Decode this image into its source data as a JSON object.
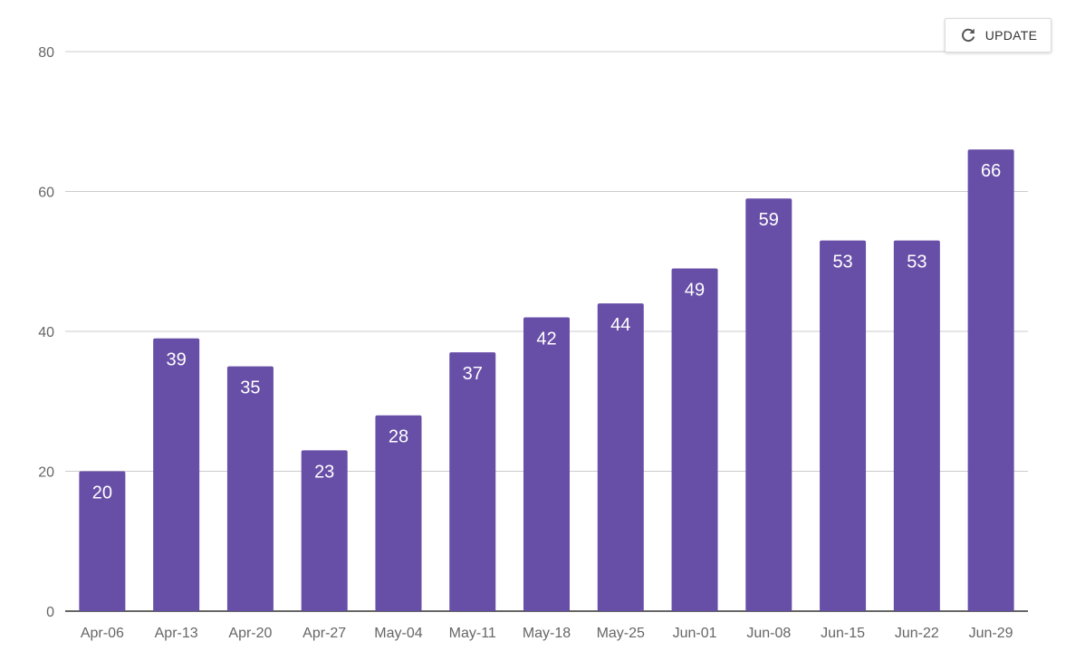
{
  "chart_data": {
    "type": "bar",
    "title": "",
    "xlabel": "",
    "ylabel": "",
    "categories": [
      "Apr-06",
      "Apr-13",
      "Apr-20",
      "Apr-27",
      "May-04",
      "May-11",
      "May-18",
      "May-25",
      "Jun-01",
      "Jun-08",
      "Jun-15",
      "Jun-22",
      "Jun-29"
    ],
    "values": [
      20,
      39,
      35,
      23,
      28,
      37,
      42,
      44,
      49,
      59,
      53,
      53,
      66
    ],
    "ylim": [
      0,
      80
    ],
    "yticks": [
      0,
      20,
      40,
      60,
      80
    ],
    "grid": true,
    "data_labels": true,
    "bar_color": "#674ea7",
    "label_color": "#ffffff",
    "gridline_color": "#cccccc",
    "baseline_color": "#333333"
  },
  "toolbar": {
    "update_label": "UPDATE",
    "update_icon": "refresh-icon"
  }
}
